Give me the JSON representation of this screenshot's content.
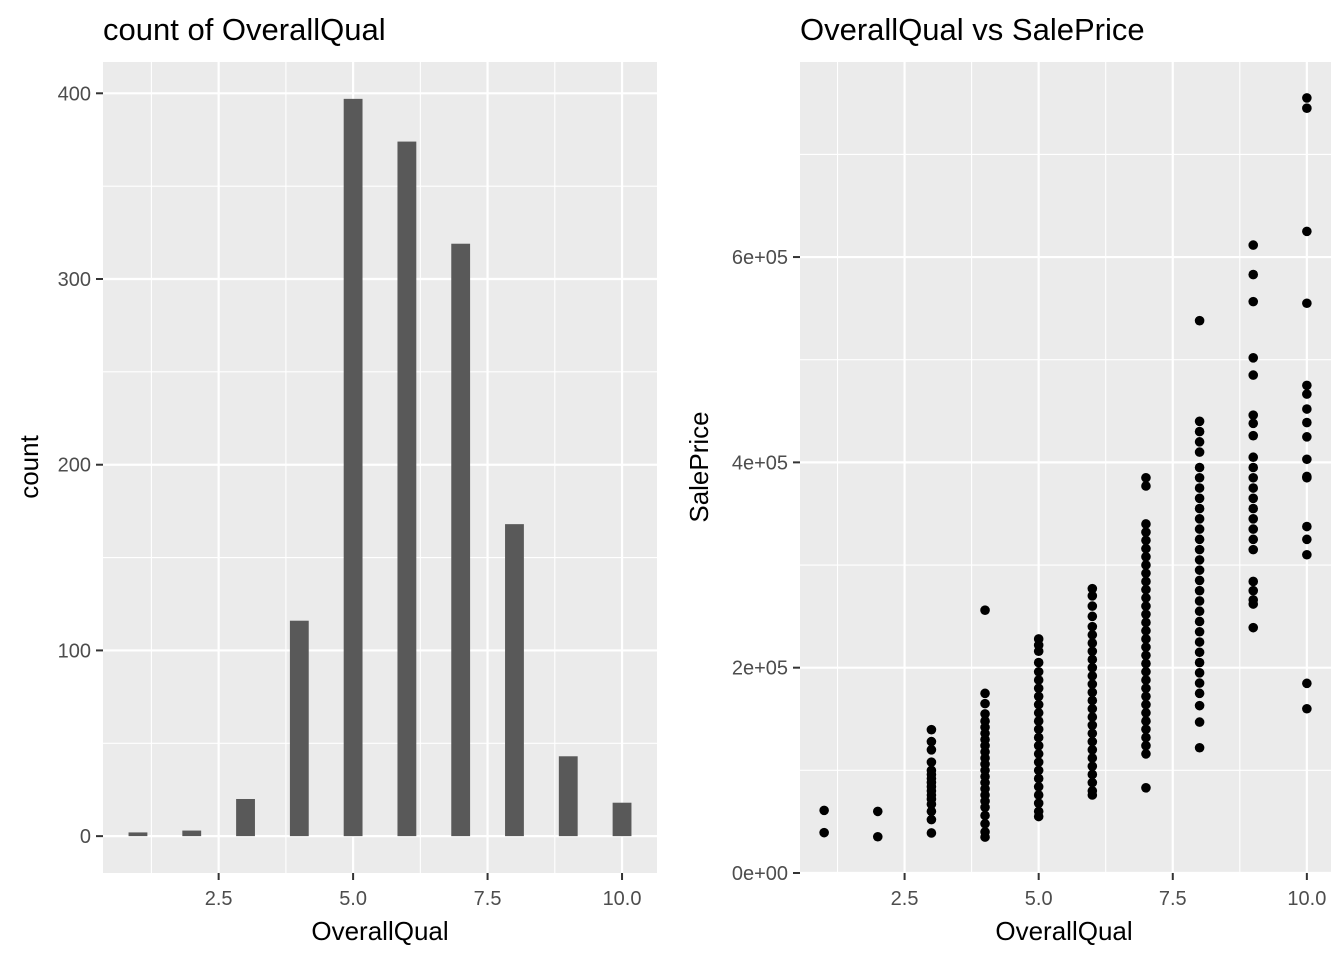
{
  "chart_data": [
    {
      "type": "bar",
      "title": "count of  OverallQual",
      "xlabel": "OverallQual",
      "ylabel": "count",
      "x": [
        1,
        2,
        3,
        4,
        5,
        6,
        7,
        8,
        9,
        10
      ],
      "values": [
        2,
        3,
        20,
        116,
        397,
        374,
        319,
        168,
        43,
        18
      ],
      "xlim": [
        0.35,
        10.65
      ],
      "ylim": [
        -19.85,
        416.85
      ],
      "xticks": [
        {
          "value": 2.5,
          "label": "2.5"
        },
        {
          "value": 5.0,
          "label": "5.0"
        },
        {
          "value": 7.5,
          "label": "7.5"
        },
        {
          "value": 10.0,
          "label": "10.0"
        }
      ],
      "yticks": [
        {
          "value": 0,
          "label": "0"
        },
        {
          "value": 100,
          "label": "100"
        },
        {
          "value": 200,
          "label": "200"
        },
        {
          "value": 300,
          "label": "300"
        },
        {
          "value": 400,
          "label": "400"
        }
      ],
      "bar_width": 0.35,
      "grid": true,
      "colors": {
        "bar": "#595959",
        "panel": "#ebebeb",
        "grid": "#ffffff"
      }
    },
    {
      "type": "scatter",
      "title": "OverallQual  vs SalePrice",
      "xlabel": "OverallQual",
      "ylabel": "SalePrice",
      "xlim": [
        0.55,
        10.45
      ],
      "ylim": [
        0,
        790000
      ],
      "xticks": [
        {
          "value": 2.5,
          "label": "2.5"
        },
        {
          "value": 5.0,
          "label": "5.0"
        },
        {
          "value": 7.5,
          "label": "7.5"
        },
        {
          "value": 10.0,
          "label": "10.0"
        }
      ],
      "yticks": [
        {
          "value": 0,
          "label": "0e+00"
        },
        {
          "value": 200000,
          "label": "2e+05"
        },
        {
          "value": 400000,
          "label": "4e+05"
        },
        {
          "value": 600000,
          "label": "6e+05"
        }
      ],
      "points": [
        {
          "x": 1,
          "y": 61000
        },
        {
          "x": 1,
          "y": 39300
        },
        {
          "x": 2,
          "y": 60000
        },
        {
          "x": 2,
          "y": 35311
        },
        {
          "x": 3,
          "y": 139600
        },
        {
          "x": 3,
          "y": 128000
        },
        {
          "x": 3,
          "y": 120000
        },
        {
          "x": 3,
          "y": 108000
        },
        {
          "x": 3,
          "y": 100000
        },
        {
          "x": 3,
          "y": 96000
        },
        {
          "x": 3,
          "y": 92000
        },
        {
          "x": 3,
          "y": 88000
        },
        {
          "x": 3,
          "y": 84000
        },
        {
          "x": 3,
          "y": 80000
        },
        {
          "x": 3,
          "y": 76000
        },
        {
          "x": 3,
          "y": 72000
        },
        {
          "x": 3,
          "y": 67000
        },
        {
          "x": 3,
          "y": 60000
        },
        {
          "x": 3,
          "y": 52000
        },
        {
          "x": 3,
          "y": 39000
        },
        {
          "x": 4,
          "y": 256000
        },
        {
          "x": 4,
          "y": 175000
        },
        {
          "x": 4,
          "y": 165000
        },
        {
          "x": 4,
          "y": 155000
        },
        {
          "x": 4,
          "y": 148000
        },
        {
          "x": 4,
          "y": 142000
        },
        {
          "x": 4,
          "y": 136000
        },
        {
          "x": 4,
          "y": 130000
        },
        {
          "x": 4,
          "y": 124000
        },
        {
          "x": 4,
          "y": 118000
        },
        {
          "x": 4,
          "y": 112000
        },
        {
          "x": 4,
          "y": 106000
        },
        {
          "x": 4,
          "y": 100000
        },
        {
          "x": 4,
          "y": 94000
        },
        {
          "x": 4,
          "y": 88000
        },
        {
          "x": 4,
          "y": 82000
        },
        {
          "x": 4,
          "y": 76000
        },
        {
          "x": 4,
          "y": 70000
        },
        {
          "x": 4,
          "y": 64000
        },
        {
          "x": 4,
          "y": 56000
        },
        {
          "x": 4,
          "y": 48000
        },
        {
          "x": 4,
          "y": 40000
        },
        {
          "x": 4,
          "y": 35000
        },
        {
          "x": 5,
          "y": 228000
        },
        {
          "x": 5,
          "y": 222000
        },
        {
          "x": 5,
          "y": 216000
        },
        {
          "x": 5,
          "y": 205000
        },
        {
          "x": 5,
          "y": 196000
        },
        {
          "x": 5,
          "y": 188000
        },
        {
          "x": 5,
          "y": 180000
        },
        {
          "x": 5,
          "y": 172000
        },
        {
          "x": 5,
          "y": 164000
        },
        {
          "x": 5,
          "y": 156000
        },
        {
          "x": 5,
          "y": 148000
        },
        {
          "x": 5,
          "y": 140000
        },
        {
          "x": 5,
          "y": 132000
        },
        {
          "x": 5,
          "y": 124000
        },
        {
          "x": 5,
          "y": 116000
        },
        {
          "x": 5,
          "y": 108000
        },
        {
          "x": 5,
          "y": 100000
        },
        {
          "x": 5,
          "y": 92000
        },
        {
          "x": 5,
          "y": 84000
        },
        {
          "x": 5,
          "y": 76000
        },
        {
          "x": 5,
          "y": 68000
        },
        {
          "x": 5,
          "y": 60000
        },
        {
          "x": 5,
          "y": 55000
        },
        {
          "x": 6,
          "y": 277000
        },
        {
          "x": 6,
          "y": 270000
        },
        {
          "x": 6,
          "y": 260000
        },
        {
          "x": 6,
          "y": 250000
        },
        {
          "x": 6,
          "y": 240000
        },
        {
          "x": 6,
          "y": 232000
        },
        {
          "x": 6,
          "y": 224000
        },
        {
          "x": 6,
          "y": 216000
        },
        {
          "x": 6,
          "y": 208000
        },
        {
          "x": 6,
          "y": 200000
        },
        {
          "x": 6,
          "y": 192000
        },
        {
          "x": 6,
          "y": 184000
        },
        {
          "x": 6,
          "y": 176000
        },
        {
          "x": 6,
          "y": 168000
        },
        {
          "x": 6,
          "y": 160000
        },
        {
          "x": 6,
          "y": 152000
        },
        {
          "x": 6,
          "y": 144000
        },
        {
          "x": 6,
          "y": 136000
        },
        {
          "x": 6,
          "y": 128000
        },
        {
          "x": 6,
          "y": 120000
        },
        {
          "x": 6,
          "y": 112000
        },
        {
          "x": 6,
          "y": 104000
        },
        {
          "x": 6,
          "y": 96000
        },
        {
          "x": 6,
          "y": 88000
        },
        {
          "x": 6,
          "y": 80000
        },
        {
          "x": 6,
          "y": 76000
        },
        {
          "x": 7,
          "y": 385000
        },
        {
          "x": 7,
          "y": 377000
        },
        {
          "x": 7,
          "y": 340000
        },
        {
          "x": 7,
          "y": 332000
        },
        {
          "x": 7,
          "y": 324000
        },
        {
          "x": 7,
          "y": 316000
        },
        {
          "x": 7,
          "y": 308000
        },
        {
          "x": 7,
          "y": 300000
        },
        {
          "x": 7,
          "y": 292000
        },
        {
          "x": 7,
          "y": 284000
        },
        {
          "x": 7,
          "y": 276000
        },
        {
          "x": 7,
          "y": 268000
        },
        {
          "x": 7,
          "y": 260000
        },
        {
          "x": 7,
          "y": 252000
        },
        {
          "x": 7,
          "y": 244000
        },
        {
          "x": 7,
          "y": 236000
        },
        {
          "x": 7,
          "y": 228000
        },
        {
          "x": 7,
          "y": 220000
        },
        {
          "x": 7,
          "y": 212000
        },
        {
          "x": 7,
          "y": 204000
        },
        {
          "x": 7,
          "y": 196000
        },
        {
          "x": 7,
          "y": 188000
        },
        {
          "x": 7,
          "y": 180000
        },
        {
          "x": 7,
          "y": 172000
        },
        {
          "x": 7,
          "y": 164000
        },
        {
          "x": 7,
          "y": 156000
        },
        {
          "x": 7,
          "y": 148000
        },
        {
          "x": 7,
          "y": 140000
        },
        {
          "x": 7,
          "y": 132000
        },
        {
          "x": 7,
          "y": 124000
        },
        {
          "x": 7,
          "y": 116000
        },
        {
          "x": 7,
          "y": 83000
        },
        {
          "x": 8,
          "y": 440000
        },
        {
          "x": 8,
          "y": 430000
        },
        {
          "x": 8,
          "y": 420000
        },
        {
          "x": 8,
          "y": 410000
        },
        {
          "x": 8,
          "y": 395000
        },
        {
          "x": 8,
          "y": 385000
        },
        {
          "x": 8,
          "y": 375000
        },
        {
          "x": 8,
          "y": 365000
        },
        {
          "x": 8,
          "y": 355000
        },
        {
          "x": 8,
          "y": 345000
        },
        {
          "x": 8,
          "y": 335000
        },
        {
          "x": 8,
          "y": 325000
        },
        {
          "x": 8,
          "y": 315000
        },
        {
          "x": 8,
          "y": 305000
        },
        {
          "x": 8,
          "y": 295000
        },
        {
          "x": 8,
          "y": 285000
        },
        {
          "x": 8,
          "y": 275000
        },
        {
          "x": 8,
          "y": 265000
        },
        {
          "x": 8,
          "y": 255000
        },
        {
          "x": 8,
          "y": 245000
        },
        {
          "x": 8,
          "y": 235000
        },
        {
          "x": 8,
          "y": 225000
        },
        {
          "x": 8,
          "y": 215000
        },
        {
          "x": 8,
          "y": 205000
        },
        {
          "x": 8,
          "y": 195000
        },
        {
          "x": 8,
          "y": 185000
        },
        {
          "x": 8,
          "y": 175000
        },
        {
          "x": 8,
          "y": 163000
        },
        {
          "x": 8,
          "y": 147000
        },
        {
          "x": 8,
          "y": 122000
        },
        {
          "x": 8,
          "y": 538000
        },
        {
          "x": 9,
          "y": 611657
        },
        {
          "x": 9,
          "y": 582933
        },
        {
          "x": 9,
          "y": 556581
        },
        {
          "x": 9,
          "y": 501837
        },
        {
          "x": 9,
          "y": 485000
        },
        {
          "x": 9,
          "y": 446000
        },
        {
          "x": 9,
          "y": 438000
        },
        {
          "x": 9,
          "y": 426000
        },
        {
          "x": 9,
          "y": 405000
        },
        {
          "x": 9,
          "y": 395000
        },
        {
          "x": 9,
          "y": 385000
        },
        {
          "x": 9,
          "y": 375000
        },
        {
          "x": 9,
          "y": 365000
        },
        {
          "x": 9,
          "y": 355000
        },
        {
          "x": 9,
          "y": 345000
        },
        {
          "x": 9,
          "y": 335000
        },
        {
          "x": 9,
          "y": 325000
        },
        {
          "x": 9,
          "y": 315000
        },
        {
          "x": 9,
          "y": 284000
        },
        {
          "x": 9,
          "y": 275000
        },
        {
          "x": 9,
          "y": 266000
        },
        {
          "x": 9,
          "y": 262000
        },
        {
          "x": 9,
          "y": 239000
        },
        {
          "x": 10,
          "y": 755000
        },
        {
          "x": 10,
          "y": 745000
        },
        {
          "x": 10,
          "y": 625000
        },
        {
          "x": 10,
          "y": 555000
        },
        {
          "x": 10,
          "y": 475000
        },
        {
          "x": 10,
          "y": 466500
        },
        {
          "x": 10,
          "y": 451950
        },
        {
          "x": 10,
          "y": 438780
        },
        {
          "x": 10,
          "y": 424870
        },
        {
          "x": 10,
          "y": 403000
        },
        {
          "x": 10,
          "y": 386250
        },
        {
          "x": 10,
          "y": 385000
        },
        {
          "x": 10,
          "y": 337500
        },
        {
          "x": 10,
          "y": 325000
        },
        {
          "x": 10,
          "y": 310000
        },
        {
          "x": 10,
          "y": 184750
        },
        {
          "x": 10,
          "y": 160000
        }
      ],
      "grid": true,
      "colors": {
        "point": "#000000",
        "panel": "#ebebeb",
        "grid": "#ffffff"
      }
    }
  ]
}
